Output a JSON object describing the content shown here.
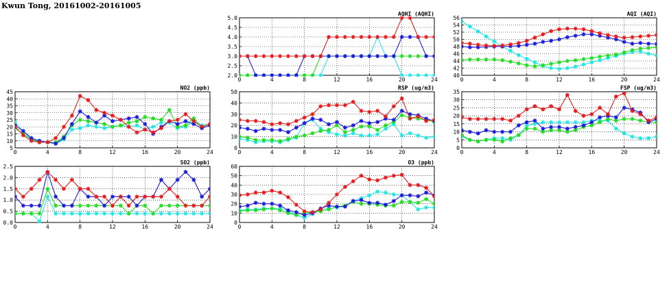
{
  "page_title": "Kwun Tong, 20161002-20161005",
  "colors": {
    "red": "#e41a1c",
    "blue": "#1a1adc",
    "green": "#22dd22",
    "cyan": "#22e5e5"
  },
  "chart_data": [
    {
      "id": "aqhi",
      "type": "line",
      "title": "AQHI (AQHI)",
      "xlim": [
        0,
        24
      ],
      "ylim": [
        2.0,
        5.0
      ],
      "xticks": [
        0,
        4,
        8,
        12,
        16,
        20,
        24
      ],
      "yticks": [
        2.0,
        2.5,
        3.0,
        3.5,
        4.0,
        4.5,
        5.0
      ],
      "ytick_labels": [
        "2.0",
        "2.5",
        "3.0",
        "3.5",
        "4.0",
        "4.5",
        "5.0"
      ],
      "x": [
        0,
        1,
        2,
        3,
        4,
        5,
        6,
        7,
        8,
        9,
        10,
        11,
        12,
        13,
        14,
        15,
        16,
        17,
        18,
        19,
        20,
        21,
        22,
        23,
        24
      ],
      "series": [
        {
          "color": "red",
          "values": [
            3,
            3,
            3,
            3,
            3,
            3,
            3,
            3,
            3,
            3,
            3,
            4,
            4,
            4,
            4,
            4,
            4,
            4,
            4,
            4,
            5,
            5,
            4,
            4,
            4
          ]
        },
        {
          "color": "blue",
          "values": [
            3,
            3,
            2,
            2,
            2,
            2,
            2,
            2,
            3,
            3,
            3,
            3,
            3,
            3,
            3,
            3,
            3,
            3,
            3,
            3,
            4,
            4,
            4,
            3,
            3
          ]
        },
        {
          "color": "green",
          "values": [
            2,
            2,
            2,
            2,
            2,
            2,
            2,
            2,
            2,
            2,
            3,
            3,
            3,
            3,
            3,
            3,
            3,
            3,
            3,
            3,
            3,
            3,
            3,
            3,
            3
          ]
        },
        {
          "color": "cyan",
          "values": [
            2,
            2,
            2,
            2,
            2,
            2,
            2,
            2,
            2,
            2,
            2,
            3,
            3,
            3,
            3,
            3,
            3,
            4,
            3,
            3,
            2,
            2,
            2,
            2,
            2
          ]
        }
      ]
    },
    {
      "id": "aqi",
      "type": "line",
      "title": "AQI (AQI)",
      "xlim": [
        0,
        24
      ],
      "ylim": [
        40,
        56
      ],
      "xticks": [
        0,
        4,
        8,
        12,
        16,
        20,
        24
      ],
      "yticks": [
        40,
        42,
        44,
        46,
        48,
        50,
        52,
        54,
        56
      ],
      "ytick_labels": [
        "40",
        "42",
        "44",
        "46",
        "48",
        "50",
        "52",
        "54",
        "56"
      ],
      "x": [
        0,
        1,
        2,
        3,
        4,
        5,
        6,
        7,
        8,
        9,
        10,
        11,
        12,
        13,
        14,
        15,
        16,
        17,
        18,
        19,
        20,
        21,
        22,
        23,
        24
      ],
      "series": [
        {
          "color": "red",
          "values": [
            49,
            48.8,
            48.5,
            48.3,
            48.2,
            48.3,
            48.6,
            49,
            49.6,
            50.5,
            51.4,
            52.3,
            52.8,
            53,
            53,
            52.8,
            52.3,
            51.7,
            51.2,
            50.8,
            50.5,
            50.6,
            50.8,
            51,
            51.2
          ]
        },
        {
          "color": "blue",
          "values": [
            48,
            47.8,
            47.8,
            47.9,
            48,
            48,
            48.1,
            48.2,
            48.5,
            48.8,
            49.3,
            49.6,
            50,
            50.6,
            51,
            51.4,
            51.4,
            51,
            50.5,
            50,
            49.3,
            48.8,
            49,
            48.8,
            48.7
          ]
        },
        {
          "color": "green",
          "values": [
            44.3,
            44.4,
            44.4,
            44.4,
            44.4,
            44.2,
            43.8,
            43.3,
            42.8,
            42.5,
            42.8,
            43.2,
            43.6,
            44,
            44.2,
            44.5,
            44.8,
            45.2,
            45.5,
            45.8,
            46.4,
            47,
            47.4,
            47.6,
            47.8
          ]
        },
        {
          "color": "cyan",
          "values": [
            55,
            53.6,
            52.2,
            50.8,
            49.4,
            48,
            46.8,
            45.6,
            44.6,
            43.6,
            42.6,
            42,
            41.8,
            42,
            42.4,
            43,
            43.6,
            44.2,
            44.8,
            45.4,
            46,
            46.5,
            46.6,
            46,
            45.5
          ]
        }
      ]
    },
    {
      "id": "no2",
      "type": "line",
      "title": "NO2 (ppb)",
      "xlim": [
        0,
        24
      ],
      "ylim": [
        5,
        45
      ],
      "xticks": [
        0,
        4,
        8,
        12,
        16,
        20,
        24
      ],
      "yticks": [
        5,
        10,
        15,
        20,
        25,
        30,
        35,
        40,
        45
      ],
      "ytick_labels": [
        "5",
        "10",
        "15",
        "20",
        "25",
        "30",
        "35",
        "40",
        "45"
      ],
      "x": [
        0,
        1,
        2,
        3,
        4,
        5,
        6,
        7,
        8,
        9,
        10,
        11,
        12,
        13,
        14,
        15,
        16,
        17,
        18,
        19,
        20,
        21,
        22,
        23,
        24
      ],
      "series": [
        {
          "color": "red",
          "values": [
            20,
            14,
            10,
            9,
            9,
            12,
            20,
            28,
            42,
            39,
            32,
            30,
            28,
            25,
            20,
            16,
            18,
            16,
            19,
            24,
            25,
            29,
            24,
            20,
            22
          ]
        },
        {
          "color": "blue",
          "values": [
            21,
            17,
            12,
            10,
            9,
            8,
            12,
            22,
            31,
            27,
            23,
            28,
            24,
            25,
            26,
            27,
            22,
            15,
            20,
            24,
            22,
            24,
            22,
            19,
            21
          ]
        },
        {
          "color": "green",
          "values": [
            19,
            15,
            11,
            9,
            9,
            9,
            13,
            21,
            25,
            24,
            23,
            22,
            20,
            21,
            23,
            24,
            27,
            26,
            25,
            32,
            20,
            21,
            26,
            20,
            22
          ]
        },
        {
          "color": "cyan",
          "values": [
            23,
            17,
            11,
            10,
            9,
            8,
            11,
            18,
            19,
            21,
            20,
            19,
            20,
            21,
            20,
            21,
            18,
            20,
            23,
            23,
            19,
            20,
            24,
            21,
            22
          ]
        }
      ]
    },
    {
      "id": "rsp",
      "type": "line",
      "title": "RSP (ug/m3)",
      "xlim": [
        0,
        24
      ],
      "ylim": [
        0,
        50
      ],
      "xticks": [
        0,
        4,
        8,
        12,
        16,
        20,
        24
      ],
      "yticks": [
        0,
        10,
        20,
        30,
        40,
        50
      ],
      "ytick_labels": [
        "0",
        "10",
        "20",
        "30",
        "40",
        "50"
      ],
      "x": [
        0,
        1,
        2,
        3,
        4,
        5,
        6,
        7,
        8,
        9,
        10,
        11,
        12,
        13,
        14,
        15,
        16,
        17,
        18,
        19,
        20,
        21,
        22,
        23,
        24
      ],
      "series": [
        {
          "color": "red",
          "values": [
            25,
            24,
            24,
            23,
            21,
            22,
            21,
            24,
            27,
            30,
            37,
            38,
            38,
            38,
            41,
            33,
            32,
            33,
            28,
            37,
            44,
            26,
            28,
            24,
            25
          ]
        },
        {
          "color": "blue",
          "values": [
            18,
            17,
            15,
            17,
            16,
            16,
            14,
            18,
            22,
            26,
            25,
            21,
            23,
            18,
            20,
            24,
            22,
            23,
            26,
            25,
            33,
            30,
            29,
            26,
            24
          ]
        },
        {
          "color": "green",
          "values": [
            10,
            9,
            7,
            7,
            7,
            6,
            8,
            10,
            11,
            13,
            15,
            16,
            20,
            14,
            16,
            19,
            19,
            16,
            20,
            23,
            29,
            27,
            26,
            25,
            23
          ]
        },
        {
          "color": "cyan",
          "values": [
            8,
            7,
            5,
            6,
            6,
            5,
            7,
            9,
            22,
            25,
            17,
            14,
            12,
            11,
            13,
            11,
            11,
            12,
            17,
            21,
            11,
            13,
            11,
            9,
            10
          ]
        }
      ]
    },
    {
      "id": "fsp",
      "type": "line",
      "title": "FSP (ug/m3)",
      "xlim": [
        0,
        24
      ],
      "ylim": [
        0,
        35
      ],
      "xticks": [
        0,
        4,
        8,
        12,
        16,
        20,
        24
      ],
      "yticks": [
        0,
        5,
        10,
        15,
        20,
        25,
        30,
        35
      ],
      "ytick_labels": [
        "0",
        "5",
        "10",
        "15",
        "20",
        "25",
        "30",
        "35"
      ],
      "x": [
        0,
        1,
        2,
        3,
        4,
        5,
        6,
        7,
        8,
        9,
        10,
        11,
        12,
        13,
        14,
        15,
        16,
        17,
        18,
        19,
        20,
        21,
        22,
        23,
        24
      ],
      "series": [
        {
          "color": "red",
          "values": [
            19,
            18,
            18,
            18,
            18,
            18,
            17,
            20,
            24,
            26,
            24,
            26,
            24,
            33,
            23,
            20,
            21,
            25,
            21,
            32,
            34,
            23,
            21,
            17,
            19
          ]
        },
        {
          "color": "blue",
          "values": [
            11,
            10,
            9,
            11,
            10,
            10,
            10,
            14,
            16,
            17,
            12,
            13,
            13,
            12,
            13,
            14,
            16,
            19,
            20,
            19,
            25,
            24,
            22,
            16,
            18
          ]
        },
        {
          "color": "green",
          "values": [
            8,
            5,
            4,
            5,
            5,
            4,
            6,
            8,
            12,
            12,
            10,
            11,
            11,
            10,
            11,
            13,
            14,
            16,
            18,
            17,
            18,
            18,
            17,
            16,
            16
          ]
        },
        {
          "color": "cyan",
          "values": [
            7,
            5,
            4,
            5,
            6,
            6,
            5,
            8,
            14,
            15,
            16,
            16,
            16,
            16,
            16,
            16,
            17,
            17,
            17,
            12,
            9,
            7,
            6,
            6,
            7
          ]
        }
      ]
    },
    {
      "id": "so2",
      "type": "line",
      "title": "SO2 (ppb)",
      "xlim": [
        0,
        24
      ],
      "ylim": [
        0.0,
        2.5
      ],
      "xticks": [
        0,
        4,
        8,
        12,
        16,
        20,
        24
      ],
      "yticks": [
        0.0,
        0.5,
        1.0,
        1.5,
        2.0,
        2.5
      ],
      "ytick_labels": [
        "0.0",
        "0.5",
        "1.0",
        "1.5",
        "2.0",
        "2.5"
      ],
      "x": [
        0,
        1,
        2,
        3,
        4,
        5,
        6,
        7,
        8,
        9,
        10,
        11,
        12,
        13,
        14,
        15,
        16,
        17,
        18,
        19,
        20,
        21,
        22,
        23,
        24
      ],
      "series": [
        {
          "color": "red",
          "values": [
            1.5,
            1.15,
            1.5,
            1.9,
            2.25,
            1.9,
            1.5,
            1.9,
            1.5,
            1.5,
            1.15,
            1.15,
            0.75,
            1.15,
            0.75,
            1.15,
            1.15,
            1.15,
            1.15,
            1.5,
            1.15,
            0.75,
            0.75,
            0.75,
            1.15
          ]
        },
        {
          "color": "blue",
          "values": [
            1.15,
            0.75,
            0.75,
            0.75,
            2.25,
            1.15,
            0.75,
            0.75,
            1.5,
            1.15,
            1.15,
            0.75,
            1.15,
            1.15,
            1.15,
            0.75,
            1.15,
            1.15,
            1.9,
            1.5,
            1.9,
            2.25,
            1.9,
            1.15,
            1.5
          ]
        },
        {
          "color": "green",
          "values": [
            0.4,
            0.4,
            0.4,
            0.4,
            1.5,
            0.75,
            0.75,
            0.75,
            0.75,
            0.75,
            0.75,
            0.75,
            0.75,
            0.75,
            0.4,
            0.75,
            0.75,
            0.4,
            0.75,
            0.75,
            0.75,
            0.75,
            0.75,
            0.75,
            0.75
          ]
        },
        {
          "color": "cyan",
          "values": [
            0.4,
            0.4,
            0.4,
            0.05,
            1.15,
            0.4,
            0.4,
            0.4,
            0.4,
            0.4,
            0.4,
            0.4,
            0.4,
            0.4,
            0.4,
            0.4,
            0.4,
            0.4,
            0.4,
            0.4,
            0.4,
            0.4,
            0.4,
            0.4,
            0.4
          ]
        }
      ]
    },
    {
      "id": "o3",
      "type": "line",
      "title": "O3 (ppb)",
      "xlim": [
        0,
        24
      ],
      "ylim": [
        0,
        60
      ],
      "xticks": [
        0,
        4,
        8,
        12,
        16,
        20,
        24
      ],
      "yticks": [
        0,
        10,
        20,
        30,
        40,
        50,
        60
      ],
      "ytick_labels": [
        "0",
        "10",
        "20",
        "30",
        "40",
        "50",
        "60"
      ],
      "x": [
        0,
        1,
        2,
        3,
        4,
        5,
        6,
        7,
        8,
        9,
        10,
        11,
        12,
        13,
        14,
        15,
        16,
        17,
        18,
        19,
        20,
        21,
        22,
        23,
        24
      ],
      "series": [
        {
          "color": "red",
          "values": [
            29,
            30,
            32,
            32,
            34,
            32,
            27,
            19,
            12,
            11,
            14,
            21,
            30,
            38,
            44,
            50,
            46,
            45,
            48,
            50,
            51,
            40,
            40,
            37,
            28
          ]
        },
        {
          "color": "blue",
          "values": [
            17,
            18,
            21,
            20,
            20,
            18,
            13,
            11,
            8,
            10,
            15,
            18,
            17,
            17,
            23,
            24,
            21,
            21,
            19,
            23,
            29,
            29,
            28,
            32,
            29
          ]
        },
        {
          "color": "green",
          "values": [
            12,
            13,
            13,
            14,
            15,
            13,
            10,
            8,
            10,
            11,
            12,
            14,
            17,
            18,
            22,
            20,
            20,
            19,
            18,
            18,
            22,
            22,
            21,
            25,
            20
          ]
        },
        {
          "color": "cyan",
          "values": [
            13,
            14,
            14,
            15,
            15,
            15,
            12,
            8,
            5,
            9,
            14,
            15,
            16,
            18,
            23,
            26,
            29,
            33,
            32,
            30,
            29,
            22,
            14,
            16,
            16
          ]
        }
      ]
    }
  ]
}
